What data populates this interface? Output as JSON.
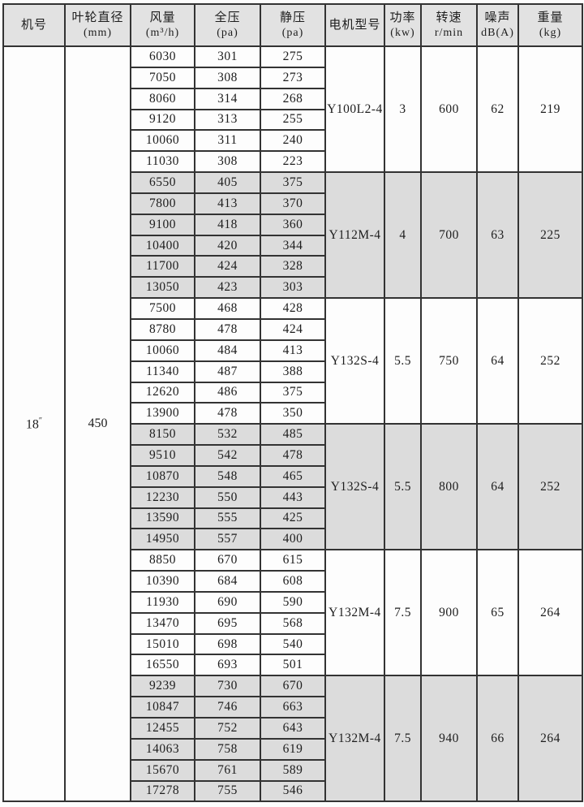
{
  "page": {
    "background": "#fcfcfc",
    "border_color": "#333333",
    "header_bg": "#e2e2e2",
    "shaded_block_bg": "#dcdcdc",
    "plain_block_bg": "#fdfdfd"
  },
  "table": {
    "headers": {
      "machine_no": "机号",
      "impeller_line1": "叶轮直径",
      "impeller_line2": "(mm)",
      "air_volume_line1": "风量",
      "air_volume_line2": "(m³/h)",
      "total_pressure_line1": "全压",
      "total_pressure_line2": "(pa)",
      "static_pressure_line1": "静压",
      "static_pressure_line2": "(pa)",
      "motor_model": "电机型号",
      "power_line1": "功率",
      "power_line2": "(kw)",
      "speed_line1": "转速",
      "speed_line2": "r/min",
      "noise_line1": "噪声",
      "noise_line2": "dB(A)",
      "weight_line1": "重量",
      "weight_line2": "(kg)"
    },
    "machine_no_value": "18",
    "machine_no_unit": "″",
    "impeller_diameter": "450",
    "blocks": [
      {
        "shaded": false,
        "rows": [
          [
            6030,
            301,
            275
          ],
          [
            7050,
            308,
            273
          ],
          [
            8060,
            314,
            268
          ],
          [
            9120,
            313,
            255
          ],
          [
            10060,
            311,
            240
          ],
          [
            11030,
            308,
            223
          ]
        ],
        "motor_model": "Y100L2-4",
        "power": "3",
        "speed": "600",
        "noise": "62",
        "weight": "219"
      },
      {
        "shaded": true,
        "rows": [
          [
            6550,
            405,
            375
          ],
          [
            7800,
            413,
            370
          ],
          [
            9100,
            418,
            360
          ],
          [
            10400,
            420,
            344
          ],
          [
            11700,
            424,
            328
          ],
          [
            13050,
            423,
            303
          ]
        ],
        "motor_model": "Y112M-4",
        "power": "4",
        "speed": "700",
        "noise": "63",
        "weight": "225"
      },
      {
        "shaded": false,
        "rows": [
          [
            7500,
            468,
            428
          ],
          [
            8780,
            478,
            424
          ],
          [
            10060,
            484,
            413
          ],
          [
            11340,
            487,
            388
          ],
          [
            12620,
            486,
            375
          ],
          [
            13900,
            478,
            350
          ]
        ],
        "motor_model": "Y132S-4",
        "power": "5.5",
        "speed": "750",
        "noise": "64",
        "weight": "252"
      },
      {
        "shaded": true,
        "rows": [
          [
            8150,
            532,
            485
          ],
          [
            9510,
            542,
            478
          ],
          [
            10870,
            548,
            465
          ],
          [
            12230,
            550,
            443
          ],
          [
            13590,
            555,
            425
          ],
          [
            14950,
            557,
            400
          ]
        ],
        "motor_model": "Y132S-4",
        "power": "5.5",
        "speed": "800",
        "noise": "64",
        "weight": "252"
      },
      {
        "shaded": false,
        "rows": [
          [
            8850,
            670,
            615
          ],
          [
            10390,
            684,
            608
          ],
          [
            11930,
            690,
            590
          ],
          [
            13470,
            695,
            568
          ],
          [
            15010,
            698,
            540
          ],
          [
            16550,
            693,
            501
          ]
        ],
        "motor_model": "Y132M-4",
        "power": "7.5",
        "speed": "900",
        "noise": "65",
        "weight": "264"
      },
      {
        "shaded": true,
        "rows": [
          [
            9239,
            730,
            670
          ],
          [
            10847,
            746,
            663
          ],
          [
            12455,
            752,
            643
          ],
          [
            14063,
            758,
            619
          ],
          [
            15670,
            761,
            589
          ],
          [
            17278,
            755,
            546
          ]
        ],
        "motor_model": "Y132M-4",
        "power": "7.5",
        "speed": "940",
        "noise": "66",
        "weight": "264"
      }
    ]
  }
}
